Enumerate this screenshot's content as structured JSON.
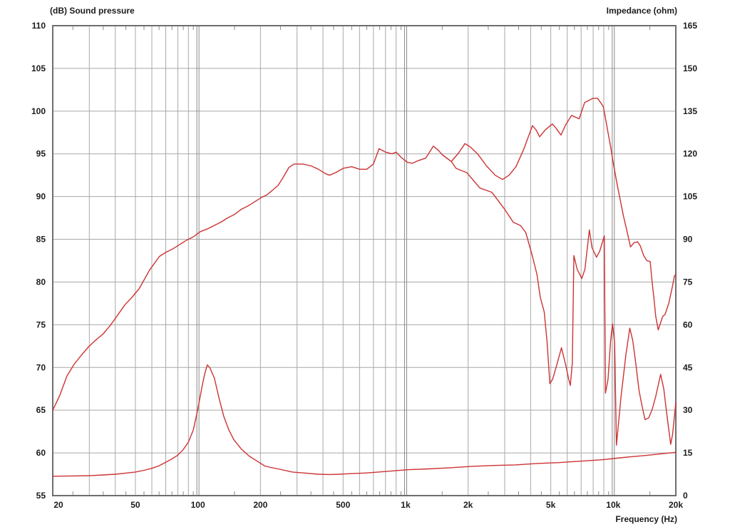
{
  "chart_data": {
    "type": "line",
    "title_left": "(dB)  Sound pressure",
    "title_right": "Impedance  (ohm)",
    "xlabel": "Frequency  (Hz)",
    "x_axis": {
      "scale": "log",
      "min": 20,
      "max": 20000,
      "tick_labels": [
        {
          "f": 20,
          "label": "20"
        },
        {
          "f": 50,
          "label": "50"
        },
        {
          "f": 100,
          "label": "100"
        },
        {
          "f": 200,
          "label": "200"
        },
        {
          "f": 500,
          "label": "500"
        },
        {
          "f": 1000,
          "label": "1k"
        },
        {
          "f": 2000,
          "label": "2k"
        },
        {
          "f": 5000,
          "label": "5k"
        },
        {
          "f": 10000,
          "label": "10k"
        },
        {
          "f": 20000,
          "label": "20k"
        }
      ],
      "gridlines": [
        30,
        40,
        50,
        60,
        70,
        80,
        90,
        200,
        300,
        400,
        500,
        600,
        700,
        800,
        900,
        2000,
        3000,
        4000,
        5000,
        6000,
        7000,
        8000,
        9000
      ],
      "decade_gridlines": [
        100,
        1000,
        10000
      ],
      "minor_ticks": [
        25,
        35,
        45,
        55,
        65,
        75,
        85,
        95,
        150,
        250,
        350,
        450,
        550,
        650,
        750,
        850,
        950,
        1500,
        2500,
        3500,
        4500,
        5500,
        6500,
        7500,
        8500,
        9500,
        15000
      ]
    },
    "y_left": {
      "label": "(dB)  Sound pressure",
      "min": 55,
      "max": 110,
      "step": 5,
      "ticks": [
        110,
        105,
        100,
        95,
        90,
        85,
        80,
        75,
        70,
        65,
        60,
        55
      ]
    },
    "y_right": {
      "label": "Impedance  (ohm)",
      "min": 0,
      "max": 165,
      "step": 15,
      "ticks": [
        165,
        150,
        135,
        120,
        105,
        90,
        75,
        60,
        45,
        30,
        15,
        0
      ]
    },
    "grid": true,
    "legend": "none",
    "colors": {
      "curve": "#cc3333",
      "grid": "#a8a8a8",
      "grid_decade": "#8a8a8a",
      "border": "#6e6e6e",
      "text": "#1c1c1c"
    },
    "series": [
      {
        "name": "spl-on-axis",
        "axis": "left",
        "unit": "dB",
        "points": [
          [
            20,
            65
          ],
          [
            21.6,
            66.7
          ],
          [
            23.4,
            69.0
          ],
          [
            25.4,
            70.4
          ],
          [
            27.4,
            71.4
          ],
          [
            29.7,
            72.4
          ],
          [
            32.2,
            73.2
          ],
          [
            34.9,
            73.9
          ],
          [
            37.8,
            74.9
          ],
          [
            41,
            76.1
          ],
          [
            44.4,
            77.3
          ],
          [
            48.1,
            78.2
          ],
          [
            52.1,
            79.2
          ],
          [
            58.5,
            81.4
          ],
          [
            65.3,
            83.0
          ],
          [
            70.4,
            83.5
          ],
          [
            76,
            83.9
          ],
          [
            81.9,
            84.4
          ],
          [
            88.3,
            84.9
          ],
          [
            95.2,
            85.3
          ],
          [
            102.7,
            85.9
          ],
          [
            110.7,
            86.2
          ],
          [
            119.4,
            86.6
          ],
          [
            128.8,
            87.0
          ],
          [
            138.9,
            87.5
          ],
          [
            149.8,
            87.9
          ],
          [
            161.5,
            88.5
          ],
          [
            174.2,
            88.9
          ],
          [
            187.8,
            89.4
          ],
          [
            202.6,
            89.9
          ],
          [
            215,
            90.2
          ],
          [
            230,
            90.8
          ],
          [
            243,
            91.3
          ],
          [
            258,
            92.3
          ],
          [
            274,
            93.4
          ],
          [
            290,
            93.8
          ],
          [
            320,
            93.8
          ],
          [
            350,
            93.6
          ],
          [
            380,
            93.2
          ],
          [
            410,
            92.7
          ],
          [
            430,
            92.5
          ],
          [
            460,
            92.8
          ],
          [
            500,
            93.3
          ],
          [
            550,
            93.5
          ],
          [
            600,
            93.2
          ],
          [
            650,
            93.2
          ],
          [
            700,
            93.8
          ],
          [
            745,
            95.6
          ],
          [
            800,
            95.2
          ],
          [
            860,
            95.0
          ],
          [
            900,
            95.2
          ],
          [
            950,
            94.6
          ],
          [
            1020,
            94.0
          ],
          [
            1080,
            93.9
          ],
          [
            1150,
            94.2
          ],
          [
            1250,
            94.5
          ],
          [
            1360,
            95.9
          ],
          [
            1440,
            95.4
          ],
          [
            1500,
            94.9
          ],
          [
            1660,
            94.1
          ],
          [
            1800,
            95.1
          ],
          [
            1930,
            96.2
          ],
          [
            2050,
            95.8
          ],
          [
            2220,
            95.0
          ],
          [
            2450,
            93.6
          ],
          [
            2700,
            92.5
          ],
          [
            2930,
            92.0
          ],
          [
            3150,
            92.5
          ],
          [
            3400,
            93.5
          ],
          [
            3700,
            95.5
          ],
          [
            4080,
            98.3
          ],
          [
            4250,
            97.8
          ],
          [
            4420,
            97.0
          ],
          [
            4700,
            97.8
          ],
          [
            5090,
            98.5
          ],
          [
            5300,
            98.0
          ],
          [
            5600,
            97.2
          ],
          [
            5900,
            98.4
          ],
          [
            6300,
            99.5
          ],
          [
            6850,
            99.1
          ],
          [
            7280,
            101.0
          ],
          [
            8000,
            101.5
          ],
          [
            8400,
            101.5
          ],
          [
            8740,
            100.9
          ],
          [
            8960,
            100.5
          ],
          [
            9450,
            97.4
          ],
          [
            9710,
            95.8
          ],
          [
            9970,
            94.1
          ],
          [
            10400,
            91.6
          ],
          [
            10900,
            89.1
          ],
          [
            11200,
            87.7
          ],
          [
            11700,
            85.7
          ],
          [
            12100,
            84.1
          ],
          [
            12600,
            84.6
          ],
          [
            13100,
            84.7
          ],
          [
            13500,
            84.2
          ],
          [
            14000,
            83.1
          ],
          [
            14500,
            82.5
          ],
          [
            15050,
            82.4
          ],
          [
            15400,
            79.9
          ],
          [
            15700,
            78.0
          ],
          [
            16000,
            76.0
          ],
          [
            16450,
            74.4
          ],
          [
            17300,
            76.0
          ],
          [
            17750,
            76.2
          ],
          [
            18500,
            77.5
          ],
          [
            19200,
            79.3
          ],
          [
            19700,
            80.7
          ],
          [
            20000,
            80.9
          ]
        ]
      },
      {
        "name": "spl-off-axis",
        "axis": "left",
        "unit": "dB",
        "points": [
          [
            1500,
            94.9
          ],
          [
            1660,
            94.1
          ],
          [
            1750,
            93.3
          ],
          [
            1970,
            92.8
          ],
          [
            2280,
            91.0
          ],
          [
            2600,
            90.5
          ],
          [
            3000,
            88.5
          ],
          [
            3300,
            87.0
          ],
          [
            3580,
            86.6
          ],
          [
            3790,
            85.8
          ],
          [
            4080,
            83.0
          ],
          [
            4290,
            80.9
          ],
          [
            4450,
            78.2
          ],
          [
            4650,
            76.5
          ],
          [
            4800,
            73.0
          ],
          [
            4950,
            68.1
          ],
          [
            5100,
            68.6
          ],
          [
            5300,
            70.0
          ],
          [
            5630,
            72.3
          ],
          [
            5900,
            70.3
          ],
          [
            6100,
            68.6
          ],
          [
            6210,
            67.9
          ],
          [
            6350,
            70.5
          ],
          [
            6460,
            83.1
          ],
          [
            6700,
            81.5
          ],
          [
            7050,
            80.4
          ],
          [
            7300,
            81.5
          ],
          [
            7670,
            86.1
          ],
          [
            7900,
            84.0
          ],
          [
            8300,
            82.9
          ],
          [
            8600,
            83.6
          ],
          [
            9050,
            85.4
          ],
          [
            9170,
            67.0
          ],
          [
            9430,
            68.6
          ],
          [
            9700,
            73.0
          ],
          [
            9910,
            75.1
          ],
          [
            10150,
            72.9
          ],
          [
            10350,
            60.9
          ],
          [
            10870,
            66.4
          ],
          [
            11500,
            71.5
          ],
          [
            12000,
            74.6
          ],
          [
            12400,
            73.2
          ],
          [
            12800,
            70.7
          ],
          [
            13300,
            67.3
          ],
          [
            13700,
            65.7
          ],
          [
            14200,
            63.9
          ],
          [
            14800,
            64.1
          ],
          [
            15400,
            65.1
          ],
          [
            16000,
            66.6
          ],
          [
            16900,
            69.2
          ],
          [
            17500,
            67.5
          ],
          [
            18100,
            64.5
          ],
          [
            18900,
            61.0
          ],
          [
            19300,
            62.2
          ],
          [
            20000,
            65.9
          ]
        ]
      },
      {
        "name": "impedance",
        "axis": "right",
        "unit": "ohm",
        "points": [
          [
            20,
            6.8
          ],
          [
            25,
            6.9
          ],
          [
            30,
            7.0
          ],
          [
            35,
            7.25
          ],
          [
            40,
            7.5
          ],
          [
            45,
            7.9
          ],
          [
            50,
            8.3
          ],
          [
            55,
            8.9
          ],
          [
            60,
            9.6
          ],
          [
            65,
            10.5
          ],
          [
            70,
            11.7
          ],
          [
            75,
            12.9
          ],
          [
            80,
            14.2
          ],
          [
            85,
            16.2
          ],
          [
            90,
            18.8
          ],
          [
            95,
            23.0
          ],
          [
            100,
            30.5
          ],
          [
            105,
            38.8
          ],
          [
            108,
            43.0
          ],
          [
            111,
            45.9
          ],
          [
            114,
            45.0
          ],
          [
            120,
            41.3
          ],
          [
            126,
            34.6
          ],
          [
            133,
            28.0
          ],
          [
            141,
            23.0
          ],
          [
            149,
            19.6
          ],
          [
            162,
            16.3
          ],
          [
            177,
            13.8
          ],
          [
            193,
            12.1
          ],
          [
            210,
            10.4
          ],
          [
            225,
            9.9
          ],
          [
            243,
            9.4
          ],
          [
            285,
            8.3
          ],
          [
            330,
            7.9
          ],
          [
            380,
            7.5
          ],
          [
            430,
            7.4
          ],
          [
            480,
            7.5
          ],
          [
            540,
            7.7
          ],
          [
            630,
            7.9
          ],
          [
            740,
            8.3
          ],
          [
            870,
            8.7
          ],
          [
            1020,
            9.1
          ],
          [
            1290,
            9.4
          ],
          [
            1650,
            9.8
          ],
          [
            2090,
            10.3
          ],
          [
            2660,
            10.6
          ],
          [
            3380,
            10.8
          ],
          [
            4300,
            11.3
          ],
          [
            5470,
            11.6
          ],
          [
            6950,
            12.1
          ],
          [
            8840,
            12.6
          ],
          [
            11200,
            13.4
          ],
          [
            14300,
            14.1
          ],
          [
            17600,
            14.8
          ],
          [
            20000,
            15.2
          ]
        ]
      }
    ]
  }
}
